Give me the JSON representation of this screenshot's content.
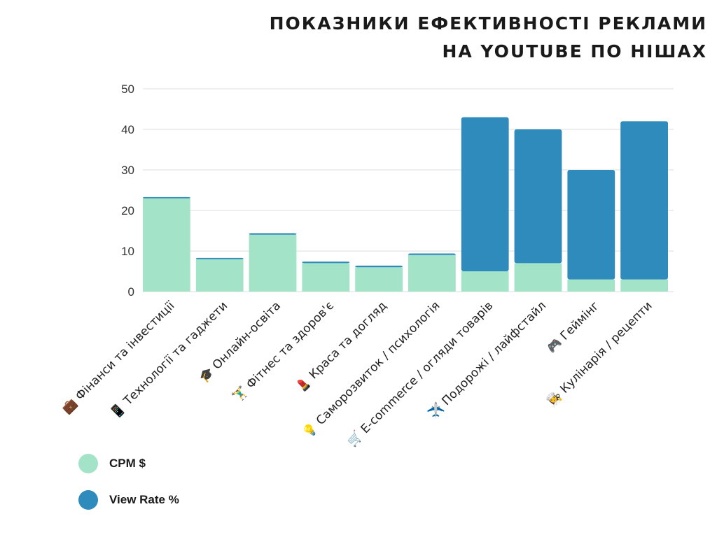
{
  "chart_data": {
    "type": "bar",
    "stacked": true,
    "title_lines": [
      "ПОКАЗНИКИ ЕФЕКТИВНОСТІ РЕКЛАМИ",
      "НА YOUTUBE ПО НІШАХ"
    ],
    "categories": [
      "💼 Фінанси та інвестиції",
      "📱 Технології та гаджети",
      "🎓 Онлайн-освіта",
      "🏋️‍♂️ Фітнес та здоров'є",
      "💄 Краса та догляд",
      "💡 Саморозвиток / психологія",
      "🛒 E-commerce / огляди товарів",
      "✈️ Подорожі / лайфстайл",
      "🎮 Геймінг",
      "👩‍🍳 Кулінарія / рецепти"
    ],
    "series": [
      {
        "name": "CPM $",
        "color": "#a3e4c9",
        "values": [
          23,
          8,
          14,
          7,
          6,
          9,
          5,
          7,
          3,
          3
        ]
      },
      {
        "name": "View Rate %",
        "color": "#2e8bbb",
        "values": [
          0.3,
          0.3,
          0.4,
          0.4,
          0.4,
          0.4,
          38,
          33,
          27,
          39
        ]
      }
    ],
    "yticks": [
      0,
      10,
      20,
      30,
      40,
      50
    ],
    "ylim": [
      0,
      50
    ],
    "grid": true,
    "legend_position": "bottom-left"
  }
}
